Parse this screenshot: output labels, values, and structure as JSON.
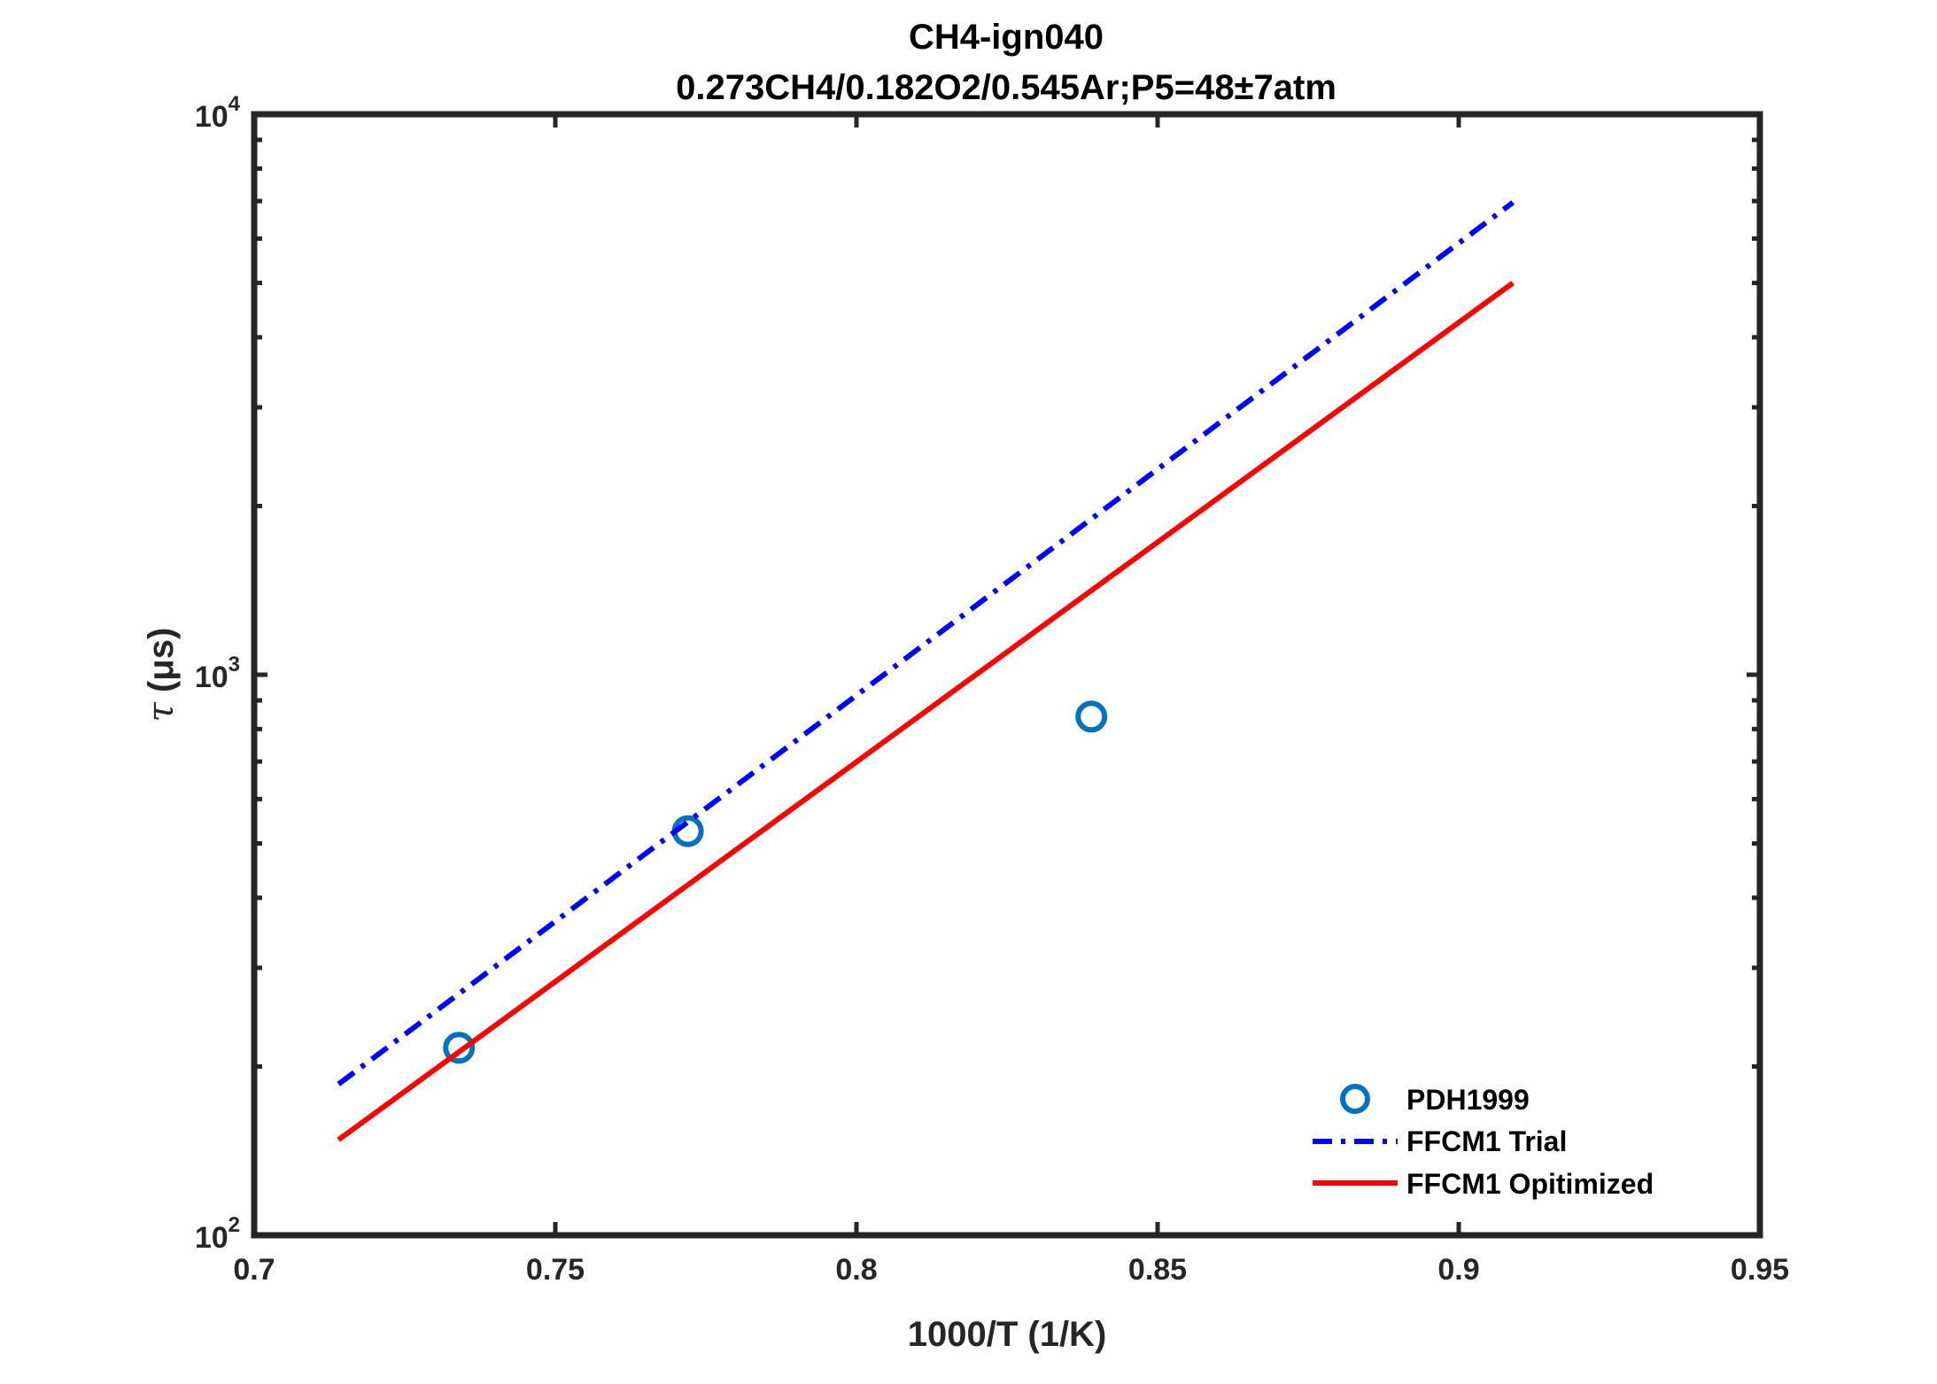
{
  "chart_data": {
    "type": "line",
    "title": "CH4-ign040",
    "subtitle": "0.273CH4/0.182O2/0.545Ar;P5=48±7atm",
    "xlabel": "1000/T (1/K)",
    "ylabel_symbol": "τ",
    "ylabel_rest": " (μs)",
    "xlim": [
      0.7,
      0.95
    ],
    "ylim": [
      100,
      10000
    ],
    "yscale": "log",
    "grid": false,
    "legend_position": "bottom-right",
    "x_ticks": [
      0.7,
      0.75,
      0.8,
      0.85,
      0.9,
      0.95
    ],
    "x_tick_labels": [
      "0.7",
      "0.75",
      "0.8",
      "0.85",
      "0.9",
      "0.95"
    ],
    "y_ticks": [
      {
        "value": 100,
        "base": "10",
        "exp": "2"
      },
      {
        "value": 1000,
        "base": "10",
        "exp": "3"
      },
      {
        "value": 10000,
        "base": "10",
        "exp": "4"
      }
    ],
    "series": [
      {
        "name": "PDH1999",
        "style": "marker",
        "color": "#0072bd",
        "x": [
          0.734,
          0.772,
          0.839
        ],
        "y": [
          216,
          526,
          842
        ]
      },
      {
        "name": "FFCM1 Trial",
        "style": "dash-dot",
        "color": "#0000ff",
        "x": [
          0.714,
          0.909
        ],
        "y": [
          186,
          6960
        ]
      },
      {
        "name": "FFCM1 Opitimized",
        "style": "solid",
        "color": "#ff0000",
        "x": [
          0.714,
          0.909
        ],
        "y": [
          148,
          5000
        ]
      }
    ]
  }
}
